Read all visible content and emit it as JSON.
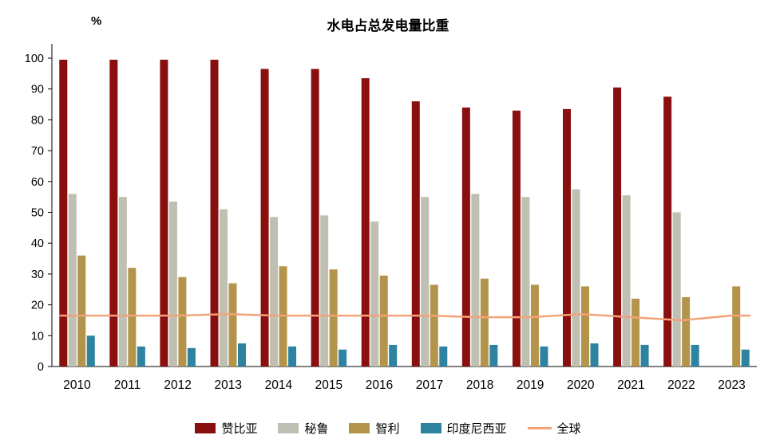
{
  "title": "水电占总发电量比重",
  "unit_label": "%",
  "chart_data": {
    "type": "bar",
    "title": "水电占总发电量比重",
    "ylabel": "%",
    "ylim": [
      0,
      100
    ],
    "yticks": [
      0,
      10,
      20,
      30,
      40,
      50,
      60,
      70,
      80,
      90,
      100
    ],
    "grid": false,
    "legend_position": "bottom",
    "categories": [
      "2010",
      "2011",
      "2012",
      "2013",
      "2014",
      "2015",
      "2016",
      "2017",
      "2018",
      "2019",
      "2020",
      "2021",
      "2022",
      "2023"
    ],
    "series": [
      {
        "name": "赞比亚",
        "color": "#8a0f0f",
        "values": [
          99.5,
          99.5,
          99.5,
          99.5,
          96.5,
          96.5,
          93.5,
          86,
          84,
          83,
          83.5,
          90.5,
          87.5,
          null
        ]
      },
      {
        "name": "秘鲁",
        "color": "#bfbfb2",
        "values": [
          56,
          55,
          53.5,
          51,
          48.5,
          49,
          47,
          55,
          56,
          55,
          57.5,
          55.5,
          50,
          null
        ]
      },
      {
        "name": "智利",
        "color": "#b3944a",
        "values": [
          36,
          32,
          29,
          27,
          32.5,
          31.5,
          29.5,
          26.5,
          28.5,
          26.5,
          26,
          22,
          22.5,
          26
        ]
      },
      {
        "name": "印度尼西亚",
        "color": "#2e84a0",
        "values": [
          10,
          6.5,
          6,
          7.5,
          6.5,
          5.5,
          7,
          6.5,
          7,
          6.5,
          7.5,
          7,
          7,
          5.5
        ]
      }
    ],
    "line_series": {
      "name": "全球",
      "color": "#f2a478",
      "values": [
        16.5,
        16.5,
        16.5,
        17,
        16.5,
        16.5,
        16.5,
        16.5,
        16,
        16,
        17,
        16,
        15,
        16.5
      ]
    }
  }
}
